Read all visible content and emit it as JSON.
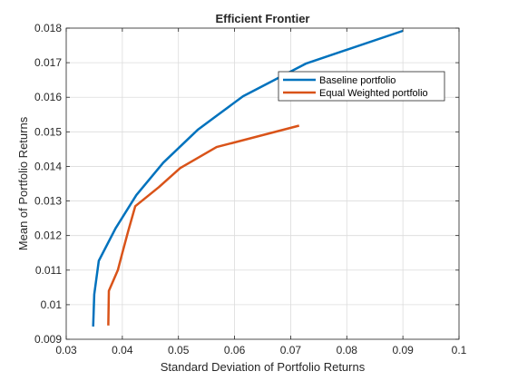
{
  "chart_data": {
    "type": "line",
    "title": "Efficient Frontier",
    "xlabel": "Standard Deviation of Portfolio Returns",
    "ylabel": "Mean of Portfolio Returns",
    "xlim": [
      0.03,
      0.1
    ],
    "ylim": [
      0.009,
      0.018
    ],
    "x_ticks": [
      0.03,
      0.04,
      0.05,
      0.06,
      0.07,
      0.08,
      0.09,
      0.1
    ],
    "y_ticks": [
      0.009,
      0.01,
      0.011,
      0.012,
      0.013,
      0.014,
      0.015,
      0.016,
      0.017,
      0.018
    ],
    "x_tick_labels": [
      "0.03",
      "0.04",
      "0.05",
      "0.06",
      "0.07",
      "0.08",
      "0.09",
      "0.1"
    ],
    "y_tick_labels": [
      "0.009",
      "0.01",
      "0.011",
      "0.012",
      "0.013",
      "0.014",
      "0.015",
      "0.016",
      "0.017",
      "0.018"
    ],
    "grid": true,
    "legend_position": "top-right",
    "series": [
      {
        "name": "Baseline portfolio",
        "color": "#0072BD",
        "points": [
          [
            0.0348,
            0.00937
          ],
          [
            0.035,
            0.0103
          ],
          [
            0.0358,
            0.01127
          ],
          [
            0.0388,
            0.01221
          ],
          [
            0.0425,
            0.01317
          ],
          [
            0.0473,
            0.01411
          ],
          [
            0.0535,
            0.01507
          ],
          [
            0.0615,
            0.01603
          ],
          [
            0.0728,
            0.01698
          ],
          [
            0.09,
            0.01792
          ]
        ]
      },
      {
        "name": "Equal Weighted portfolio",
        "color": "#D95319",
        "points": [
          [
            0.0375,
            0.0094
          ],
          [
            0.0376,
            0.0104
          ],
          [
            0.0392,
            0.011
          ],
          [
            0.04,
            0.0115
          ],
          [
            0.041,
            0.0121
          ],
          [
            0.0423,
            0.01285
          ],
          [
            0.0465,
            0.0134
          ],
          [
            0.0503,
            0.01395
          ],
          [
            0.0568,
            0.01456
          ],
          [
            0.0715,
            0.01518
          ]
        ]
      }
    ]
  }
}
